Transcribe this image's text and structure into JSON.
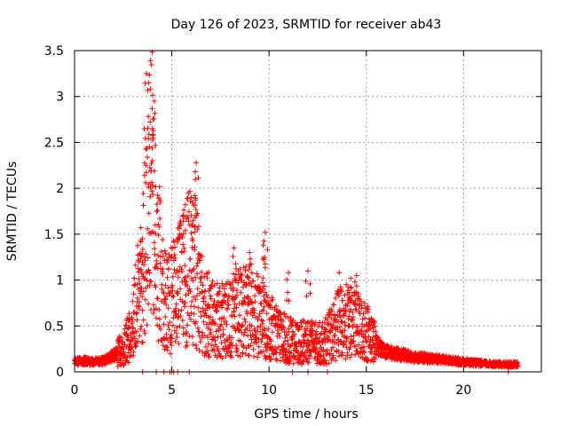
{
  "chart_data": {
    "type": "scatter",
    "title": "Day 126 of 2023, SRMTID for receiver ab43",
    "xlabel": "GPS time / hours",
    "ylabel": "SRMTID / TECUs",
    "xlim": [
      0,
      24
    ],
    "ylim": [
      0,
      3.5
    ],
    "x_ticks": [
      0,
      5,
      10,
      15,
      20
    ],
    "x_tick_labels": [
      "0",
      "5",
      "10",
      "15",
      "20"
    ],
    "y_ticks": [
      0,
      0.5,
      1,
      1.5,
      2,
      2.5,
      3,
      3.5
    ],
    "y_tick_labels": [
      "0",
      "0.5",
      "1",
      "1.5",
      "2",
      "2.5",
      "3",
      "3.5"
    ],
    "grid": true,
    "marker": "+",
    "color": "#ff0000",
    "series": [
      {
        "name": "SRMTID",
        "profile": [
          [
            0.0,
            0.11
          ],
          [
            0.5,
            0.12
          ],
          [
            1.0,
            0.11
          ],
          [
            1.5,
            0.12
          ],
          [
            2.0,
            0.18
          ],
          [
            2.5,
            0.25
          ],
          [
            3.0,
            0.5
          ],
          [
            3.3,
            0.9
          ],
          [
            3.6,
            1.3
          ],
          [
            3.8,
            1.8
          ],
          [
            4.0,
            2.1
          ],
          [
            4.2,
            1.6
          ],
          [
            4.5,
            0.9
          ],
          [
            4.8,
            0.7
          ],
          [
            5.0,
            0.8
          ],
          [
            5.3,
            0.9
          ],
          [
            5.6,
            1.0
          ],
          [
            6.0,
            1.2
          ],
          [
            6.3,
            1.0
          ],
          [
            6.6,
            0.7
          ],
          [
            7.0,
            0.6
          ],
          [
            7.5,
            0.55
          ],
          [
            8.0,
            0.6
          ],
          [
            8.5,
            0.65
          ],
          [
            9.0,
            0.7
          ],
          [
            9.5,
            0.6
          ],
          [
            10.0,
            0.5
          ],
          [
            10.5,
            0.4
          ],
          [
            11.0,
            0.35
          ],
          [
            11.5,
            0.3
          ],
          [
            12.0,
            0.35
          ],
          [
            12.5,
            0.3
          ],
          [
            13.0,
            0.35
          ],
          [
            13.5,
            0.5
          ],
          [
            14.0,
            0.55
          ],
          [
            14.5,
            0.5
          ],
          [
            15.0,
            0.45
          ],
          [
            15.5,
            0.3
          ],
          [
            16.0,
            0.22
          ],
          [
            17.0,
            0.18
          ],
          [
            18.0,
            0.15
          ],
          [
            19.0,
            0.13
          ],
          [
            20.0,
            0.11
          ],
          [
            21.0,
            0.09
          ],
          [
            22.0,
            0.08
          ],
          [
            22.8,
            0.08
          ]
        ],
        "peaks": [
          [
            3.7,
            3.25
          ],
          [
            3.9,
            3.08
          ],
          [
            4.1,
            2.95
          ],
          [
            4.0,
            2.65
          ],
          [
            3.85,
            2.45
          ],
          [
            6.25,
            2.28
          ],
          [
            6.2,
            2.18
          ],
          [
            6.0,
            1.9
          ],
          [
            5.7,
            1.82
          ],
          [
            5.4,
            1.5
          ],
          [
            8.2,
            1.35
          ],
          [
            9.0,
            1.3
          ],
          [
            9.8,
            1.52
          ],
          [
            9.7,
            1.38
          ],
          [
            11.0,
            1.08
          ],
          [
            12.0,
            1.1
          ],
          [
            13.6,
            1.08
          ],
          [
            14.2,
            1.02
          ],
          [
            14.5,
            1.05
          ],
          [
            3.5,
            1.45
          ],
          [
            3.3,
            1.2
          ]
        ],
        "zero_points": [
          [
            3.5,
            0.0
          ],
          [
            4.2,
            0.0
          ],
          [
            4.6,
            0.0
          ],
          [
            4.9,
            0.0
          ],
          [
            5.0,
            0.0
          ],
          [
            5.1,
            0.0
          ],
          [
            5.3,
            0.0
          ],
          [
            5.9,
            0.0
          ],
          [
            11.2,
            0.0
          ],
          [
            12.0,
            0.0
          ],
          [
            13.0,
            0.0
          ],
          [
            22.3,
            0.0
          ]
        ],
        "x_range": [
          0.0,
          22.8
        ],
        "point_count": 2600
      }
    ]
  }
}
